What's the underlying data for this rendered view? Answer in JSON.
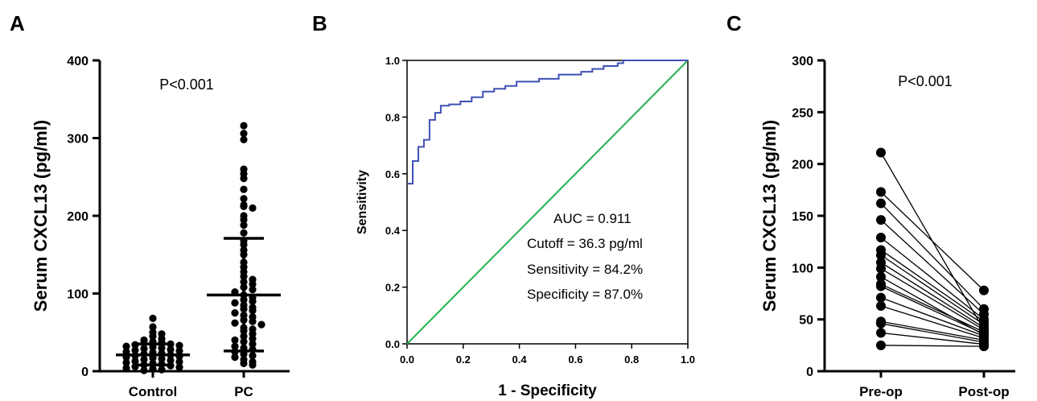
{
  "panels": {
    "a": {
      "letter": "A"
    },
    "b": {
      "letter": "B"
    },
    "c": {
      "letter": "C"
    }
  },
  "chart_data": [
    {
      "type": "scatter",
      "panel": "A",
      "ylabel": "Serum CXCL13 (pg/ml)",
      "ylim": [
        0,
        400
      ],
      "yticks": [
        0,
        100,
        200,
        300,
        400
      ],
      "categories": [
        "Control",
        "PC"
      ],
      "annotation": "P<0.001",
      "groups": [
        {
          "name": "Control",
          "mean": 21,
          "sd_low": 8,
          "sd_high": 35,
          "values": [
            68,
            57,
            50,
            48,
            45,
            42,
            40,
            38,
            37,
            36,
            35,
            34,
            33,
            32,
            31,
            30,
            29,
            28,
            27,
            26,
            25,
            24,
            23,
            22,
            21,
            20,
            19,
            18,
            17,
            16,
            15,
            14,
            13,
            12,
            11,
            10,
            9,
            8,
            7,
            6,
            5,
            4,
            3,
            2,
            1
          ]
        },
        {
          "name": "PC",
          "mean": 98,
          "sd_low": 26,
          "sd_high": 171,
          "values": [
            316,
            306,
            298,
            260,
            254,
            248,
            234,
            222,
            214,
            212,
            210,
            200,
            195,
            188,
            178,
            168,
            163,
            156,
            150,
            140,
            134,
            128,
            122,
            118,
            115,
            112,
            108,
            105,
            102,
            98,
            95,
            92,
            90,
            88,
            85,
            82,
            80,
            78,
            75,
            72,
            70,
            66,
            64,
            62,
            60,
            56,
            54,
            52,
            48,
            45,
            42,
            40,
            38,
            35,
            32,
            30,
            28,
            25,
            22,
            20,
            18,
            15,
            12,
            10,
            8
          ]
        }
      ]
    },
    {
      "type": "line",
      "panel": "B",
      "xlabel": "1 - Specificity",
      "ylabel": "Sensitivity",
      "xlim": [
        0,
        1
      ],
      "ylim": [
        0,
        1
      ],
      "xticks": [
        "0.0",
        "0.2",
        "0.4",
        "0.6",
        "0.8",
        "1.0"
      ],
      "yticks": [
        "0.0",
        "0.2",
        "0.4",
        "0.6",
        "0.8",
        "1.0"
      ],
      "annotations": [
        "AUC = 0.911",
        "Cutoff = 36.3 pg/ml",
        "Sensitivity = 84.2%",
        "Specificity = 87.0%"
      ],
      "series": [
        {
          "color": "#3f51b5",
          "step": true,
          "x": [
            0,
            0.02,
            0.04,
            0.06,
            0.08,
            0.1,
            0.12,
            0.15,
            0.19,
            0.23,
            0.27,
            0.31,
            0.35,
            0.39,
            0.47,
            0.54,
            0.62,
            0.66,
            0.7,
            0.75,
            0.77,
            0.85,
            1.0
          ],
          "y": [
            0.565,
            0.645,
            0.695,
            0.72,
            0.79,
            0.815,
            0.84,
            0.845,
            0.855,
            0.87,
            0.89,
            0.9,
            0.91,
            0.925,
            0.935,
            0.95,
            0.96,
            0.97,
            0.98,
            0.99,
            1.0,
            1.0,
            1.0
          ]
        },
        {
          "color": "#22b14c",
          "x": [
            0,
            1
          ],
          "y": [
            0,
            1
          ]
        }
      ]
    },
    {
      "type": "line",
      "panel": "C",
      "ylabel": "Serum CXCL13 (pg/ml)",
      "ylim": [
        0,
        300
      ],
      "yticks": [
        0,
        50,
        100,
        150,
        200,
        250,
        300
      ],
      "categories": [
        "Pre-op",
        "Post-op"
      ],
      "annotation": "P<0.001",
      "pairs": [
        [
          211,
          40
        ],
        [
          173,
          78
        ],
        [
          162,
          60
        ],
        [
          146,
          55
        ],
        [
          129,
          50
        ],
        [
          117,
          48
        ],
        [
          112,
          45
        ],
        [
          105,
          42
        ],
        [
          99,
          40
        ],
        [
          84,
          38
        ],
        [
          82,
          36
        ],
        [
          71,
          34
        ],
        [
          63,
          32
        ],
        [
          48,
          30
        ],
        [
          46,
          28
        ],
        [
          37,
          26
        ],
        [
          25,
          24
        ],
        [
          91,
          35
        ]
      ]
    }
  ]
}
